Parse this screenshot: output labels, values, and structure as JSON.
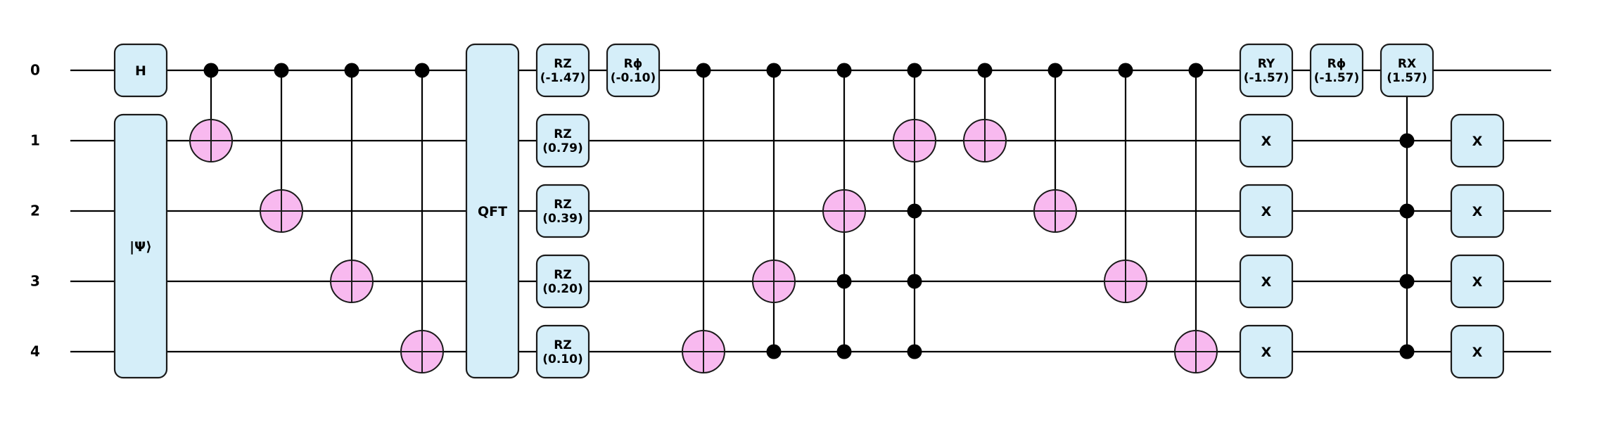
{
  "wires": [
    "0",
    "1",
    "2",
    "3",
    "4"
  ],
  "colors": {
    "gate_fill": "#d5eef9",
    "gate_stroke": "#1a1a1a",
    "target_fill": "#f8b9ef",
    "wire": "#000000",
    "control": "#000000"
  },
  "gates": [
    {
      "name": "gate-h",
      "col": 0,
      "qubits": [
        0
      ],
      "lines": [
        "H"
      ]
    },
    {
      "name": "gate-psi",
      "col": 0,
      "qubits": [
        1,
        4
      ],
      "lines": [
        "|Ψ⟩"
      ]
    },
    {
      "name": "gate-qft",
      "col": 5,
      "qubits": [
        0,
        4
      ],
      "lines": [
        "QFT"
      ]
    },
    {
      "name": "gate-rz-0",
      "col": 6,
      "qubits": [
        0
      ],
      "lines": [
        "RZ",
        "(-1.47)"
      ]
    },
    {
      "name": "gate-rz-1",
      "col": 6,
      "qubits": [
        1
      ],
      "lines": [
        "RZ",
        "(0.79)"
      ]
    },
    {
      "name": "gate-rz-2",
      "col": 6,
      "qubits": [
        2
      ],
      "lines": [
        "RZ",
        "(0.39)"
      ]
    },
    {
      "name": "gate-rz-3",
      "col": 6,
      "qubits": [
        3
      ],
      "lines": [
        "RZ",
        "(0.20)"
      ]
    },
    {
      "name": "gate-rz-4",
      "col": 6,
      "qubits": [
        4
      ],
      "lines": [
        "RZ",
        "(0.10)"
      ]
    },
    {
      "name": "gate-rphi-1",
      "col": 7,
      "qubits": [
        0
      ],
      "lines": [
        "Rϕ",
        "(-0.10)"
      ]
    },
    {
      "name": "gate-ry",
      "col": 16,
      "qubits": [
        0
      ],
      "lines": [
        "RY",
        "(-1.57)"
      ]
    },
    {
      "name": "gate-x-a1",
      "col": 16,
      "qubits": [
        1
      ],
      "lines": [
        "X"
      ]
    },
    {
      "name": "gate-x-a2",
      "col": 16,
      "qubits": [
        2
      ],
      "lines": [
        "X"
      ]
    },
    {
      "name": "gate-x-a3",
      "col": 16,
      "qubits": [
        3
      ],
      "lines": [
        "X"
      ]
    },
    {
      "name": "gate-x-a4",
      "col": 16,
      "qubits": [
        4
      ],
      "lines": [
        "X"
      ]
    },
    {
      "name": "gate-rphi-2",
      "col": 17,
      "qubits": [
        0
      ],
      "lines": [
        "Rϕ",
        "(-1.57)"
      ]
    },
    {
      "name": "gate-rx",
      "col": 18,
      "qubits": [
        0
      ],
      "lines": [
        "RX",
        "(1.57)"
      ]
    },
    {
      "name": "gate-x-b1",
      "col": 19,
      "qubits": [
        1
      ],
      "lines": [
        "X"
      ]
    },
    {
      "name": "gate-x-b2",
      "col": 19,
      "qubits": [
        2
      ],
      "lines": [
        "X"
      ]
    },
    {
      "name": "gate-x-b3",
      "col": 19,
      "qubits": [
        3
      ],
      "lines": [
        "X"
      ]
    },
    {
      "name": "gate-x-b4",
      "col": 19,
      "qubits": [
        4
      ],
      "lines": [
        "X"
      ]
    }
  ],
  "controlled": [
    {
      "name": "cnot-1",
      "col": 1,
      "controls": [
        0
      ],
      "target": 1
    },
    {
      "name": "cnot-2",
      "col": 2,
      "controls": [
        0
      ],
      "target": 2
    },
    {
      "name": "cnot-3",
      "col": 3,
      "controls": [
        0
      ],
      "target": 3
    },
    {
      "name": "cnot-4",
      "col": 4,
      "controls": [
        0
      ],
      "target": 4
    },
    {
      "name": "cnot-5",
      "col": 8,
      "controls": [
        0
      ],
      "target": 4
    },
    {
      "name": "toffoli-6",
      "col": 9,
      "controls": [
        0,
        4
      ],
      "target": 3
    },
    {
      "name": "mcx-7",
      "col": 10,
      "controls": [
        0,
        3,
        4
      ],
      "target": 2
    },
    {
      "name": "mcx-8",
      "col": 11,
      "controls": [
        0,
        2,
        3,
        4
      ],
      "target": 1
    },
    {
      "name": "cnot-9",
      "col": 12,
      "controls": [
        0
      ],
      "target": 1
    },
    {
      "name": "cnot-10",
      "col": 13,
      "controls": [
        0
      ],
      "target": 2
    },
    {
      "name": "cnot-11",
      "col": 14,
      "controls": [
        0
      ],
      "target": 3
    },
    {
      "name": "cnot-12",
      "col": 15,
      "controls": [
        0
      ],
      "target": 4
    },
    {
      "name": "mc-rx",
      "col": 18,
      "controls": [
        1,
        2,
        3,
        4
      ],
      "target": 0,
      "target_gate": "gate-rx"
    }
  ]
}
